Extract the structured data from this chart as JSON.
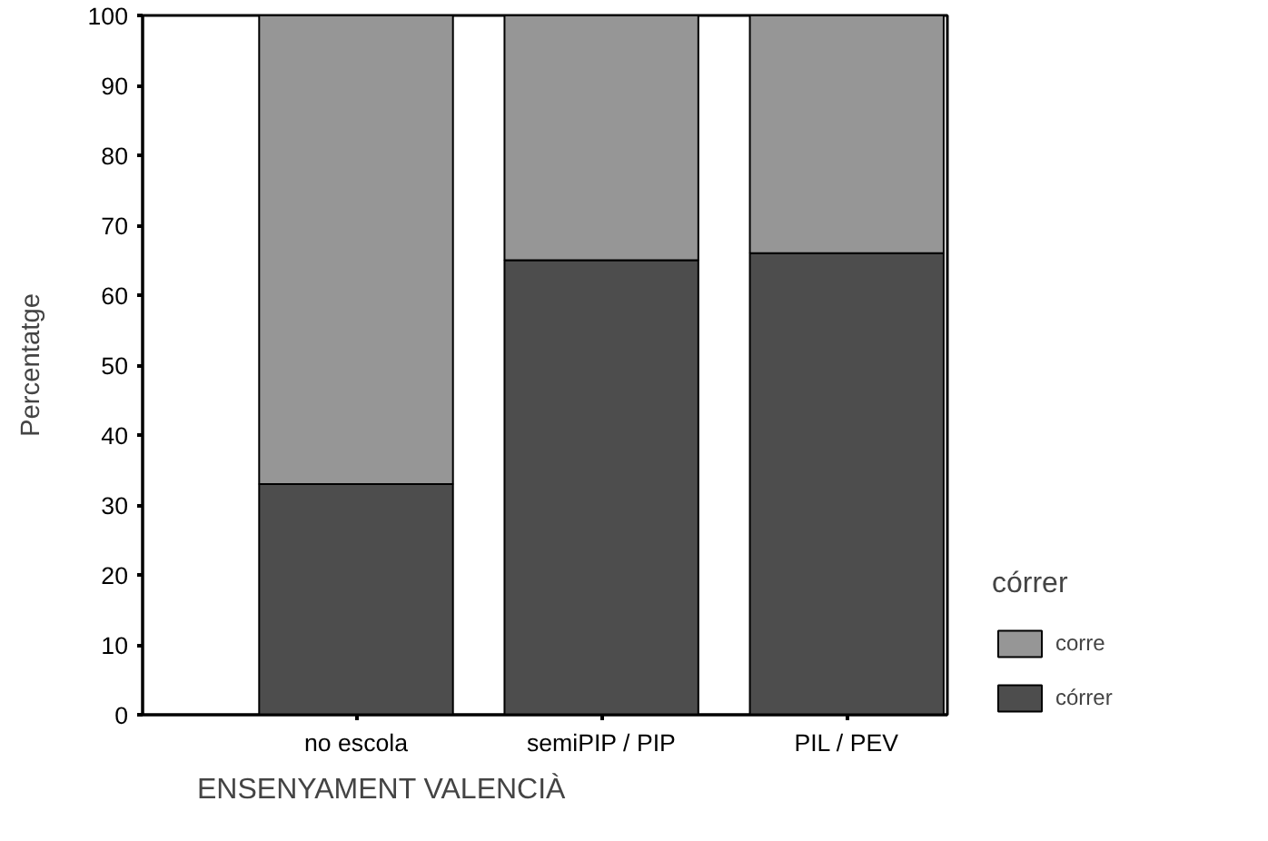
{
  "chart_data": {
    "type": "bar",
    "stacked": true,
    "xlabel": "ENSENYAMENT VALENCIÀ",
    "ylabel": "Percentatge",
    "legend_title": "córrer",
    "categories": [
      "no escola",
      "semiPIP / PIP",
      "PIL / PEV"
    ],
    "series": [
      {
        "name": "córrer",
        "color": "#4d4d4d",
        "values": [
          33,
          65,
          66
        ]
      },
      {
        "name": "corre",
        "color": "#969696",
        "values": [
          67,
          35,
          34
        ]
      }
    ],
    "ylim": [
      0,
      100
    ],
    "yticks": [
      0,
      10,
      20,
      30,
      40,
      50,
      60,
      70,
      80,
      90,
      100
    ],
    "grid": false,
    "legend": "right"
  }
}
